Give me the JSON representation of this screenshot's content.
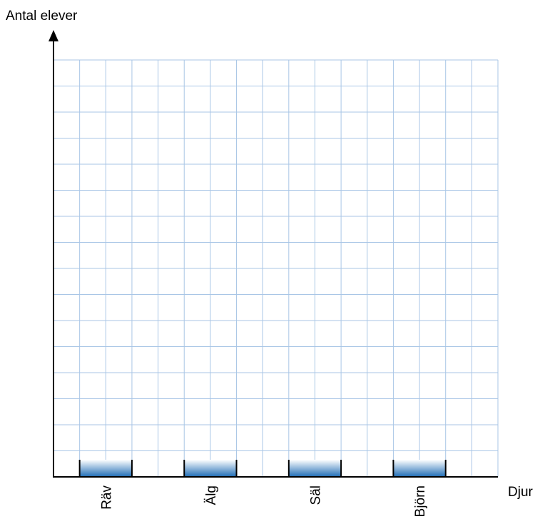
{
  "chart_data": {
    "type": "bar",
    "title": "",
    "ylabel": "Antal elever",
    "xlabel": "Djur",
    "categories": [
      "Räv",
      "Älg",
      "Säl",
      "Björn"
    ],
    "values": [
      0,
      0,
      0,
      0
    ],
    "ylim": [
      0,
      16
    ],
    "grid": true,
    "colors": {
      "grid": "#a9c6e6",
      "bar_top": "#ffffff",
      "bar_bottom": "#1e6cb5",
      "axis": "#000000"
    }
  }
}
